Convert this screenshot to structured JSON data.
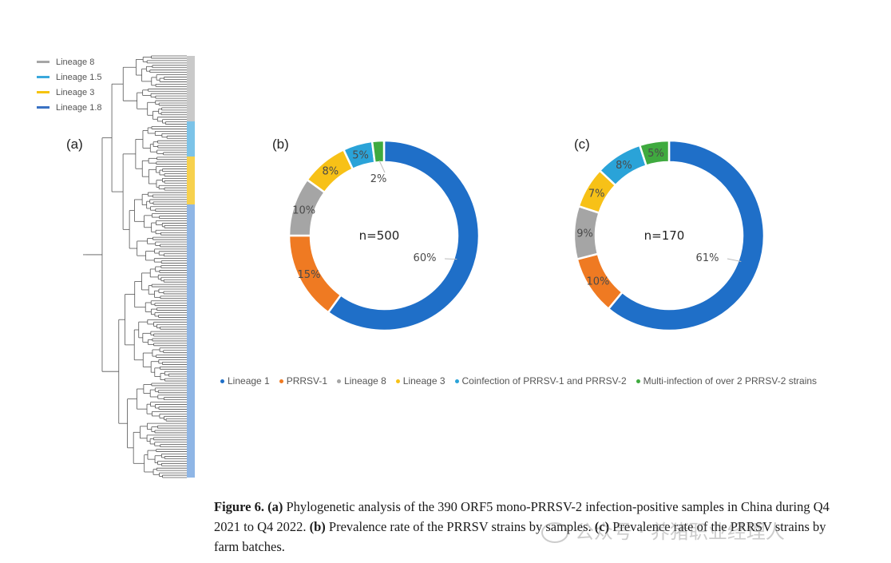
{
  "figure": {
    "panel_labels": {
      "a": "(a)",
      "b": "(b)",
      "c": "(c)"
    },
    "tree_legend": [
      {
        "label": "Lineage 8",
        "color": "#a6a6a6"
      },
      {
        "label": "Lineage 1.5",
        "color": "#3aa8dc"
      },
      {
        "label": "Lineage 3",
        "color": "#f6c40f"
      },
      {
        "label": "Lineage 1.8",
        "color": "#3a72c4"
      }
    ],
    "legend": [
      {
        "label": "Lineage 1",
        "color": "#1f6fc8"
      },
      {
        "label": "PRRSV-1",
        "color": "#ef7a22"
      },
      {
        "label": "Lineage 8",
        "color": "#a5a5a5"
      },
      {
        "label": "Lineage 3",
        "color": "#f7c117"
      },
      {
        "label": "Coinfection of PRRSV-1 and PRRSV-2",
        "color": "#2aa3d8"
      },
      {
        "label": "Multi-infection of over 2 PRRSV-2 strains",
        "color": "#3faa3f"
      }
    ],
    "caption": {
      "bold": "Figure 6.",
      "text_a_label": "(a)",
      "text_a": " Phylogenetic analysis of the 390 ORF5 mono-PRRSV-2 infection-positive samples in China during Q4 2021 to Q4 2022. ",
      "text_b_label": "(b)",
      "text_b": " Prevalence rate of the PRRSV strains by samples. ",
      "text_c_label": "(c)",
      "text_c": " Prevalence rate of the PRRSV strains by farm batches."
    },
    "watermark": "公众号 · 养猪职业经理人"
  },
  "chart_data": [
    {
      "type": "pie",
      "panel": "(b)",
      "center_label": "n=500",
      "categories": [
        "Lineage 1",
        "PRRSV-1",
        "Lineage 8",
        "Lineage 3",
        "Coinfection of PRRSV-1 and PRRSV-2",
        "Multi-infection of over 2 PRRSV-2 strains"
      ],
      "values": [
        60,
        15,
        10,
        8,
        5,
        2
      ],
      "labels": [
        "60%",
        "15%",
        "10%",
        "8%",
        "5%",
        "2%"
      ],
      "colors": [
        "#1f6fc8",
        "#ef7a22",
        "#a5a5a5",
        "#f7c117",
        "#2aa3d8",
        "#3faa3f"
      ],
      "legend_position": "bottom"
    },
    {
      "type": "pie",
      "panel": "(c)",
      "center_label": "n=170",
      "categories": [
        "Lineage 1",
        "PRRSV-1",
        "Lineage 8",
        "Lineage 3",
        "Coinfection of PRRSV-1 and PRRSV-2",
        "Multi-infection of over 2 PRRSV-2 strains"
      ],
      "values": [
        61,
        10,
        9,
        7,
        8,
        5
      ],
      "labels": [
        "61%",
        "10%",
        "9%",
        "7%",
        "8%",
        "5%"
      ],
      "colors": [
        "#1f6fc8",
        "#ef7a22",
        "#a5a5a5",
        "#f7c117",
        "#2aa3d8",
        "#3faa3f"
      ],
      "legend_position": "bottom"
    }
  ]
}
